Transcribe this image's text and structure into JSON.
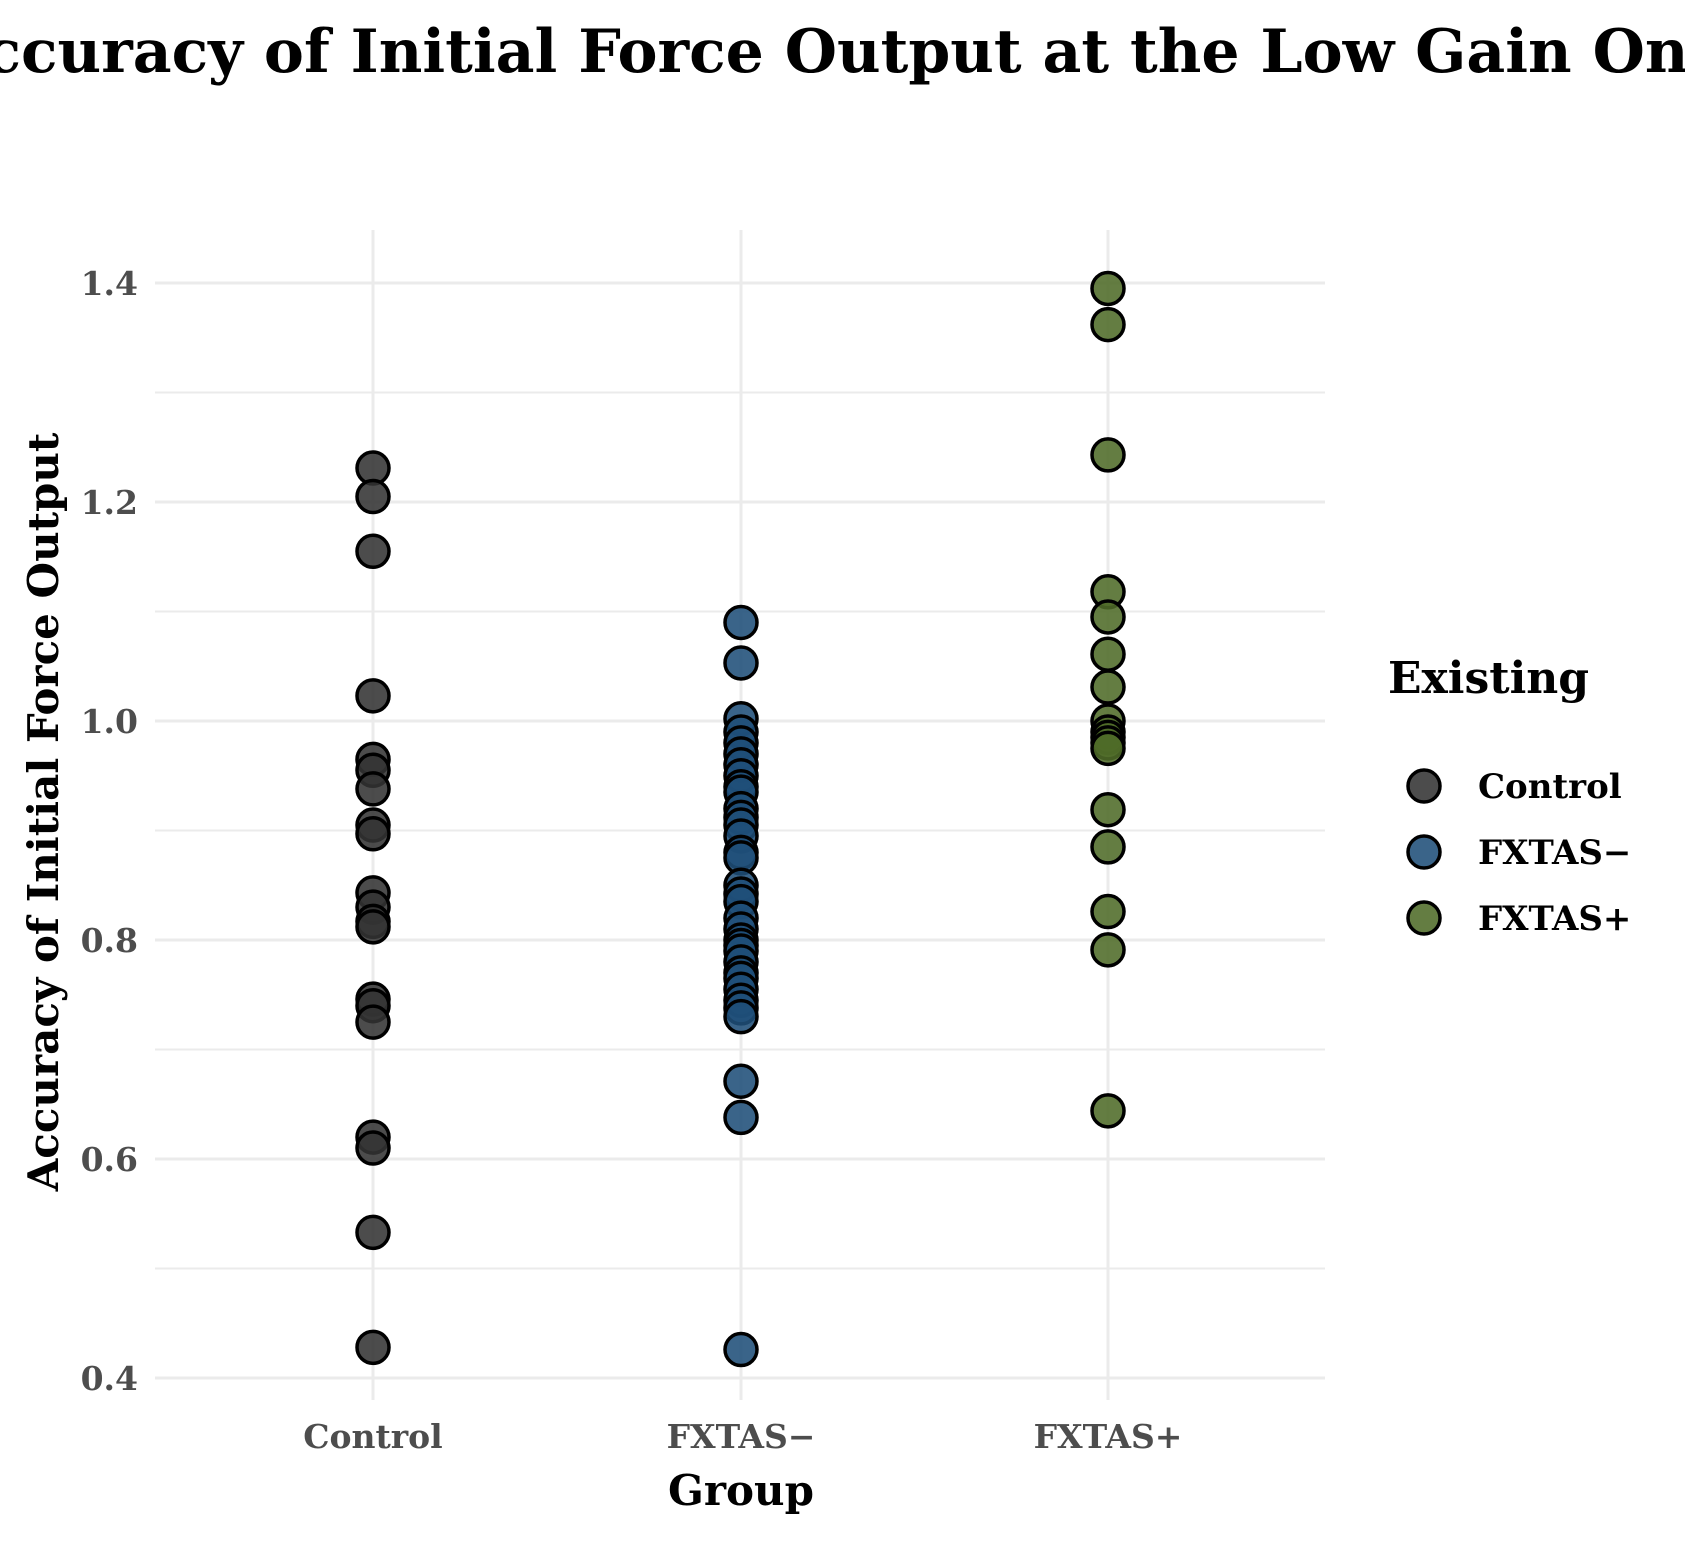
{
  "chart_data": {
    "type": "scatter",
    "title": "Accuracy of Initial Force Output at the Low Gain Only",
    "xlabel": "Group",
    "ylabel": "Accuracy of Initial Force Output",
    "categories": [
      "Control",
      "FXTAS−",
      "FXTAS+"
    ],
    "ylim": [
      0.38,
      1.43
    ],
    "yticks": [
      0.4,
      0.6,
      0.8,
      1.0,
      1.2,
      1.4
    ],
    "ytick_labels": [
      "0.4",
      "0.6",
      "0.8",
      "1.0",
      "1.2",
      "1.4"
    ],
    "grid": true,
    "legend": {
      "title": "Existing",
      "position": "right",
      "entries": [
        "Control",
        "FXTAS−",
        "FXTAS+"
      ]
    },
    "series": [
      {
        "name": "Control",
        "color": "#333333",
        "category": "Control",
        "values": [
          1.231,
          1.205,
          1.155,
          1.023,
          0.965,
          0.955,
          0.938,
          0.905,
          0.897,
          0.843,
          0.83,
          0.817,
          0.812,
          0.746,
          0.74,
          0.725,
          0.62,
          0.61,
          0.533,
          0.428
        ]
      },
      {
        "name": "FXTAS−",
        "color": "#1f4e79",
        "category": "FXTAS−",
        "values": [
          1.09,
          1.053,
          1.002,
          0.99,
          0.98,
          0.97,
          0.96,
          0.95,
          0.94,
          0.935,
          0.92,
          0.912,
          0.905,
          0.895,
          0.88,
          0.875,
          0.85,
          0.842,
          0.835,
          0.82,
          0.81,
          0.8,
          0.795,
          0.79,
          0.78,
          0.77,
          0.765,
          0.755,
          0.745,
          0.738,
          0.73,
          0.671,
          0.638,
          0.426
        ]
      },
      {
        "name": "FXTAS+",
        "color": "#4f6b28",
        "category": "FXTAS+",
        "values": [
          1.395,
          1.362,
          1.243,
          1.118,
          1.095,
          1.061,
          1.031,
          1.0,
          0.99,
          0.985,
          0.98,
          0.975,
          0.919,
          0.885,
          0.826,
          0.791,
          0.644
        ]
      }
    ]
  }
}
